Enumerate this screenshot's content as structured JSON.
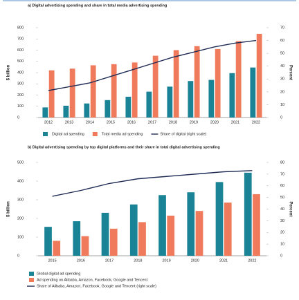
{
  "chart_data": [
    {
      "type": "bar",
      "title": "a) Digital advertising spending and share in total media advertising spending",
      "y_label": "$ billion",
      "y2_label": "Percent",
      "categories": [
        "2012",
        "2013",
        "2014",
        "2015",
        "2016",
        "2017",
        "2018",
        "2019",
        "2020",
        "2021",
        "2022"
      ],
      "series": [
        {
          "name": "Digital ad spending",
          "color": "#1a8496",
          "values": [
            90,
            105,
            125,
            155,
            185,
            230,
            275,
            325,
            335,
            395,
            445
          ]
        },
        {
          "name": "Total media ad spending",
          "color": "#f07a5c",
          "values": [
            420,
            435,
            465,
            475,
            490,
            550,
            600,
            635,
            610,
            680,
            745
          ]
        },
        {
          "name": "Share of digital (right scale)",
          "color": "#1e2b55",
          "type": "line",
          "axis": "y2",
          "values": [
            21,
            24,
            27,
            32,
            37,
            42,
            47,
            51,
            55,
            58,
            60
          ]
        }
      ],
      "ylim": [
        0,
        800
      ],
      "yticks": [
        0,
        100,
        200,
        300,
        400,
        500,
        600,
        700,
        800
      ],
      "y2lim": [
        0,
        70
      ],
      "y2ticks": [
        0,
        10,
        20,
        30,
        40,
        50,
        60,
        70
      ]
    },
    {
      "type": "bar",
      "title": "b) Digital advertising spending by top digital platforms and their share in total digital advertising spending",
      "y_label": "$ billion",
      "y2_label": "Percent",
      "categories": [
        "2015",
        "2016",
        "2017",
        "2018",
        "2019",
        "2020",
        "2021",
        "2022"
      ],
      "series": [
        {
          "name": "Global digital ad spending",
          "color": "#1a8496",
          "values": [
            155,
            185,
            230,
            275,
            325,
            340,
            395,
            445
          ]
        },
        {
          "name": "Ad spending on Alibaba, Amazon, Facebook, Google and Tencent",
          "color": "#f07a5c",
          "values": [
            80,
            105,
            145,
            180,
            215,
            240,
            285,
            330
          ]
        },
        {
          "name": "Share of Alibaba, Amazon, Facebook, Google and Tencent (right scale)",
          "color": "#1e2b55",
          "type": "line",
          "axis": "y2",
          "values": [
            51,
            56,
            62,
            66,
            68,
            70,
            72,
            73
          ]
        }
      ],
      "ylim": [
        0,
        500
      ],
      "yticks": [
        0,
        100,
        200,
        300,
        400,
        500
      ],
      "y2lim": [
        0,
        80
      ],
      "y2ticks": [
        0,
        10,
        20,
        30,
        40,
        50,
        60,
        70,
        80
      ]
    }
  ]
}
